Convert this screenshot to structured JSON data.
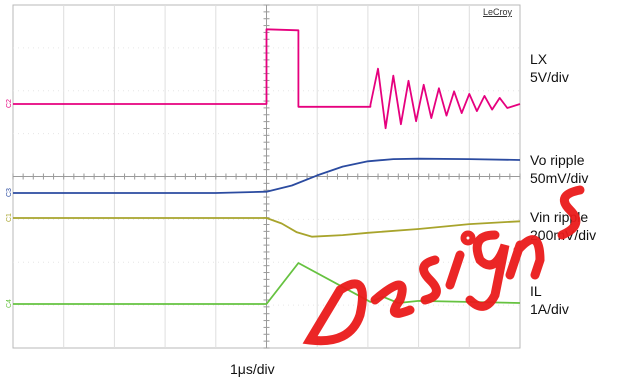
{
  "chart_data": {
    "type": "line",
    "title": "",
    "brand": "LeCroy",
    "xlabel": "1μs/div",
    "x_unit": "μs",
    "x_range": [
      0,
      10
    ],
    "grid": true,
    "grid_divisions": {
      "x": 10,
      "y": 8
    },
    "channel_markers": [
      "C2",
      "C3",
      "C1",
      "C4"
    ],
    "series": [
      {
        "name": "LX",
        "label_lines": [
          "LX",
          "5V/div"
        ],
        "color": "#e6007e",
        "points": [
          [
            0,
            0.0
          ],
          [
            5.0,
            0.0
          ],
          [
            5.0,
            14.8
          ],
          [
            5.63,
            14.6
          ],
          [
            5.63,
            -0.55
          ],
          [
            7.05,
            -0.55
          ],
          [
            7.05,
            -0.2
          ],
          [
            7.2,
            7.0
          ],
          [
            7.35,
            -4.8
          ],
          [
            7.5,
            5.6
          ],
          [
            7.65,
            -4.0
          ],
          [
            7.8,
            4.6
          ],
          [
            7.95,
            -3.4
          ],
          [
            8.1,
            3.8
          ],
          [
            8.25,
            -2.8
          ],
          [
            8.4,
            3.1
          ],
          [
            8.55,
            -2.3
          ],
          [
            8.7,
            2.5
          ],
          [
            8.85,
            -1.8
          ],
          [
            9.0,
            2.0
          ],
          [
            9.15,
            -1.4
          ],
          [
            9.3,
            1.6
          ],
          [
            9.45,
            -1.1
          ],
          [
            9.6,
            1.2
          ],
          [
            9.75,
            -0.8
          ],
          [
            10.0,
            0.0
          ]
        ]
      },
      {
        "name": "Vo ripple",
        "label_lines": [
          "Vo ripple",
          "50mV/div"
        ],
        "color": "#2b4ba0",
        "points": [
          [
            0,
            0
          ],
          [
            4.0,
            0
          ],
          [
            5.0,
            3
          ],
          [
            5.5,
            17
          ],
          [
            6.0,
            40
          ],
          [
            6.5,
            60
          ],
          [
            7.0,
            72
          ],
          [
            7.5,
            77
          ],
          [
            8.0,
            78
          ],
          [
            9.0,
            77
          ],
          [
            10.0,
            75
          ]
        ]
      },
      {
        "name": "Vin ripple",
        "label_lines": [
          "Vin ripple",
          "200mV/div"
        ],
        "color": "#a8a42c",
        "points": [
          [
            0,
            0
          ],
          [
            5.0,
            0
          ],
          [
            5.3,
            -100
          ],
          [
            5.6,
            -260
          ],
          [
            5.9,
            -340
          ],
          [
            6.5,
            -310
          ],
          [
            7.0,
            -270
          ],
          [
            8.0,
            -200
          ],
          [
            9.0,
            -110
          ],
          [
            10.0,
            -60
          ]
        ]
      },
      {
        "name": "IL",
        "label_lines": [
          "IL",
          "1A/div"
        ],
        "color": "#66c240",
        "points": [
          [
            0,
            0
          ],
          [
            5.0,
            0
          ],
          [
            5.63,
            2.0
          ],
          [
            7.05,
            0.1
          ],
          [
            7.3,
            0.35
          ],
          [
            7.6,
            0.05
          ],
          [
            8.0,
            0.15
          ],
          [
            10.0,
            0.05
          ]
        ]
      }
    ]
  }
}
